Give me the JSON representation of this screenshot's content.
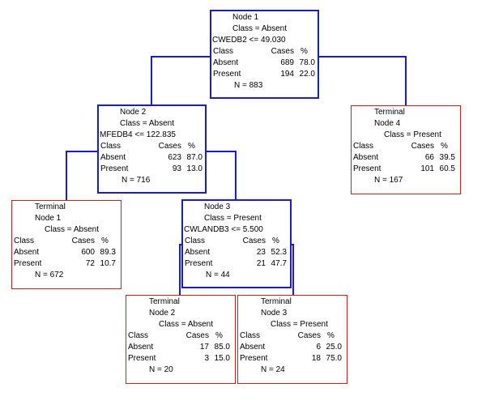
{
  "nodes": [
    {
      "id": "node-1",
      "kind": "split",
      "title": "Node 1",
      "class_line": "Class = Absent",
      "split_rule": "CWEDB2 <= 49.030",
      "header": {
        "class": "Class",
        "cases": "Cases",
        "pct": "%"
      },
      "rows": [
        {
          "class": "Absent",
          "cases": "689",
          "pct": "78.0"
        },
        {
          "class": "Present",
          "cases": "194",
          "pct": "22.0"
        }
      ],
      "n": "N = 883"
    },
    {
      "id": "node-2",
      "kind": "split",
      "title": "Node 2",
      "class_line": "Class = Absent",
      "split_rule": "MFEDB4 <= 122.835",
      "header": {
        "class": "Class",
        "cases": "Cases",
        "pct": "%"
      },
      "rows": [
        {
          "class": "Absent",
          "cases": "623",
          "pct": "87.0"
        },
        {
          "class": "Present",
          "cases": "93",
          "pct": "13.0"
        }
      ],
      "n": "N = 716"
    },
    {
      "id": "terminal-4",
      "kind": "terminal",
      "tag": "Terminal",
      "title": "Node 4",
      "class_line": "Class = Present",
      "header": {
        "class": "Class",
        "cases": "Cases",
        "pct": "%"
      },
      "rows": [
        {
          "class": "Absent",
          "cases": "66",
          "pct": "39.5"
        },
        {
          "class": "Present",
          "cases": "101",
          "pct": "60.5"
        }
      ],
      "n": "N = 167"
    },
    {
      "id": "terminal-1",
      "kind": "terminal",
      "tag": "Terminal",
      "title": "Node 1",
      "class_line": "Class = Absent",
      "header": {
        "class": "Class",
        "cases": "Cases",
        "pct": "%"
      },
      "rows": [
        {
          "class": "Absent",
          "cases": "600",
          "pct": "89.3"
        },
        {
          "class": "Present",
          "cases": "72",
          "pct": "10.7"
        }
      ],
      "n": "N = 672"
    },
    {
      "id": "node-3",
      "kind": "split",
      "title": "Node 3",
      "class_line": "Class = Present",
      "split_rule": "CWLANDB3 <=  5.500",
      "header": {
        "class": "Class",
        "cases": "Cases",
        "pct": "%"
      },
      "rows": [
        {
          "class": "Absent",
          "cases": "23",
          "pct": "52.3"
        },
        {
          "class": "Present",
          "cases": "21",
          "pct": "47.7"
        }
      ],
      "n": "N = 44"
    },
    {
      "id": "terminal-2",
      "kind": "terminal",
      "tag": "Terminal",
      "title": "Node 2",
      "class_line": "Class = Absent",
      "header": {
        "class": "Class",
        "cases": "Cases",
        "pct": "%"
      },
      "rows": [
        {
          "class": "Absent",
          "cases": "17",
          "pct": "85.0"
        },
        {
          "class": "Present",
          "cases": "3",
          "pct": "15.0"
        }
      ],
      "n": "N = 20"
    },
    {
      "id": "terminal-3",
      "kind": "terminal",
      "tag": "Terminal",
      "title": "Node 3",
      "class_line": "Class = Present",
      "header": {
        "class": "Class",
        "cases": "Cases",
        "pct": "%"
      },
      "rows": [
        {
          "class": "Absent",
          "cases": "6",
          "pct": "25.0"
        },
        {
          "class": "Present",
          "cases": "18",
          "pct": "75.0"
        }
      ],
      "n": "N = 24"
    }
  ],
  "edges": [
    {
      "from": "node-1",
      "to": "node-2"
    },
    {
      "from": "node-1",
      "to": "terminal-4"
    },
    {
      "from": "node-2",
      "to": "terminal-1"
    },
    {
      "from": "node-2",
      "to": "node-3"
    },
    {
      "from": "node-3",
      "to": "terminal-2"
    },
    {
      "from": "node-3",
      "to": "terminal-3"
    }
  ],
  "colors": {
    "split_border": "#1a1ad8",
    "terminal_border": "#d0201c",
    "edge": "#1a1ad8"
  }
}
